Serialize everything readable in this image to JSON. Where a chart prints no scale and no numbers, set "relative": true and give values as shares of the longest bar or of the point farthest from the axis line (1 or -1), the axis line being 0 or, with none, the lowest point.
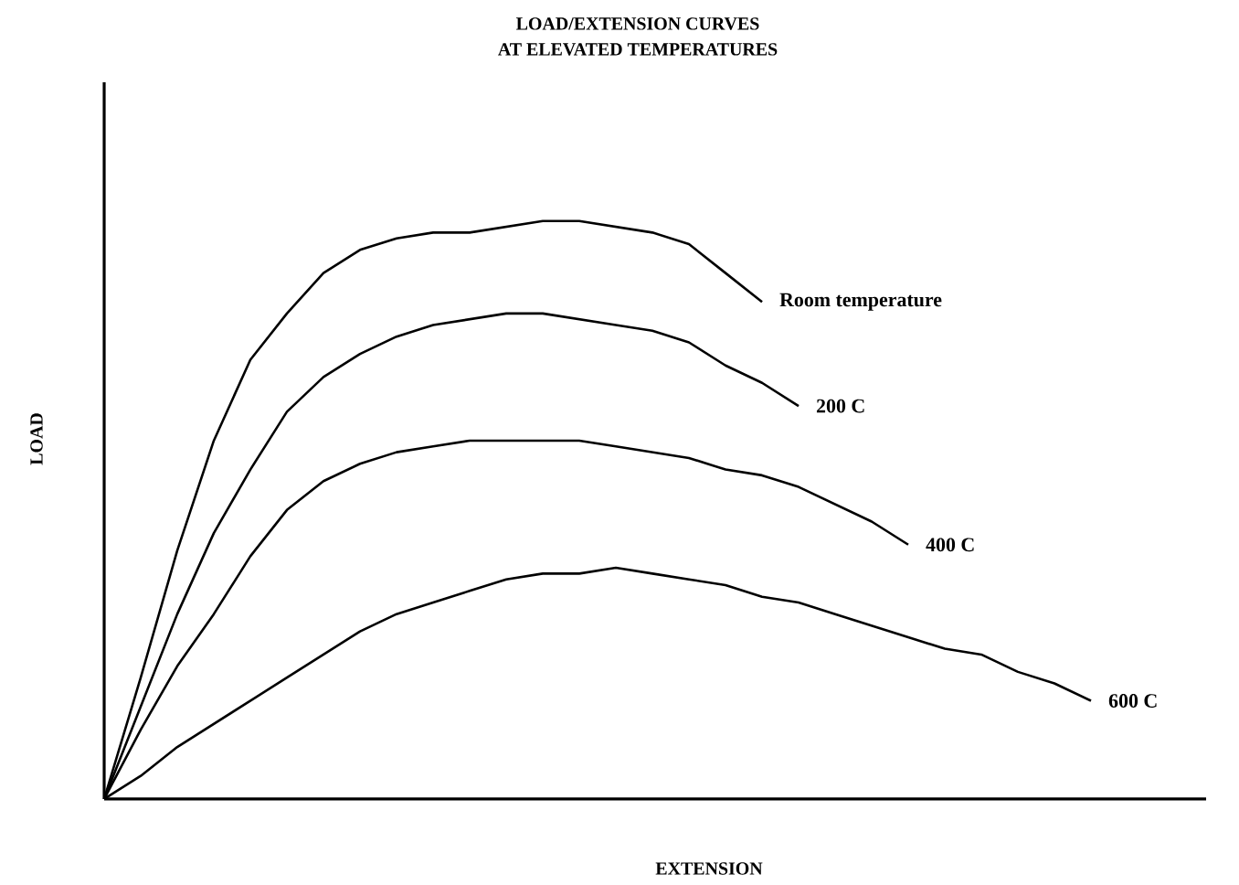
{
  "chart_data": {
    "type": "line",
    "title": "LOAD/EXTENSION CURVES",
    "subtitle": "AT ELEVATED TEMPERATURES",
    "xlabel": "EXTENSION",
    "ylabel": "LOAD",
    "relative": true,
    "categories": [
      null,
      null,
      null,
      null,
      null,
      null,
      null,
      null,
      null,
      null,
      null,
      null,
      null,
      null,
      null,
      null,
      null,
      null,
      null,
      null,
      null,
      null,
      null,
      null,
      null,
      null,
      null,
      null,
      null,
      null,
      null
    ],
    "series": [
      {
        "name": "Room temperature",
        "color": "#000000",
        "values": [
          0,
          0.21,
          0.43,
          0.62,
          0.76,
          0.84,
          0.91,
          0.95,
          0.97,
          0.98,
          0.98,
          0.99,
          1.0,
          1.0,
          0.99,
          0.98,
          0.96,
          0.91,
          0.86,
          null,
          null,
          null,
          null,
          null,
          null,
          null,
          null,
          null,
          null,
          null,
          null
        ]
      },
      {
        "name": "200 C",
        "color": "#000000",
        "values": [
          0,
          0.16,
          0.32,
          0.46,
          0.57,
          0.67,
          0.73,
          0.77,
          0.8,
          0.82,
          0.83,
          0.84,
          0.84,
          0.83,
          0.82,
          0.81,
          0.79,
          0.75,
          0.72,
          0.68,
          null,
          null,
          null,
          null,
          null,
          null,
          null,
          null,
          null,
          null,
          null
        ]
      },
      {
        "name": "400 C",
        "color": "#000000",
        "values": [
          0,
          0.12,
          0.23,
          0.32,
          0.42,
          0.5,
          0.55,
          0.58,
          0.6,
          0.61,
          0.62,
          0.62,
          0.62,
          0.62,
          0.61,
          0.6,
          0.59,
          0.57,
          0.56,
          0.54,
          0.51,
          0.48,
          0.44,
          null,
          null,
          null,
          null,
          null,
          null,
          null,
          null
        ]
      },
      {
        "name": "600 C",
        "color": "#000000",
        "values": [
          0,
          0.04,
          0.09,
          0.13,
          0.17,
          0.21,
          0.25,
          0.29,
          0.32,
          0.34,
          0.36,
          0.38,
          0.39,
          0.39,
          0.4,
          0.39,
          0.38,
          0.37,
          0.35,
          0.34,
          0.32,
          0.3,
          0.28,
          0.26,
          0.25,
          0.22,
          0.2,
          0.17,
          null,
          null,
          null
        ]
      }
    ]
  }
}
